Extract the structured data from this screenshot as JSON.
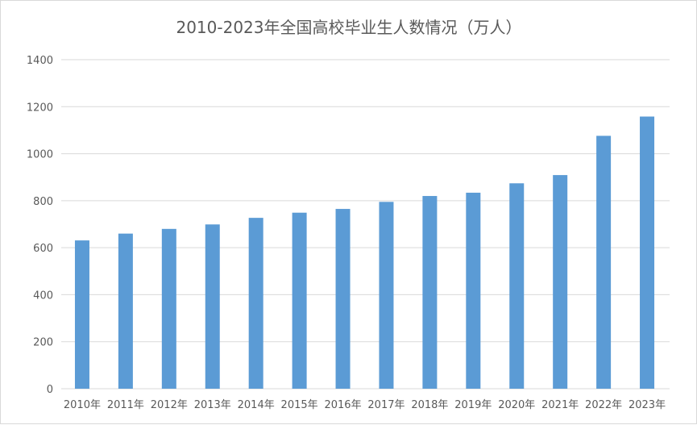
{
  "chart_data": {
    "type": "bar",
    "title": "2010-2023年全国高校毕业生人数情况（万人）",
    "xlabel": "",
    "ylabel": "",
    "categories": [
      "2010年",
      "2011年",
      "2012年",
      "2013年",
      "2014年",
      "2015年",
      "2016年",
      "2017年",
      "2018年",
      "2019年",
      "2020年",
      "2021年",
      "2022年",
      "2023年"
    ],
    "values": [
      631,
      660,
      680,
      699,
      727,
      749,
      765,
      795,
      820,
      834,
      874,
      909,
      1076,
      1158
    ],
    "ylim": [
      0,
      1400
    ],
    "yticks": [
      0,
      200,
      400,
      600,
      800,
      1000,
      1200,
      1400
    ],
    "grid": true,
    "legend": "none",
    "bar_color": "#5b9bd5"
  }
}
